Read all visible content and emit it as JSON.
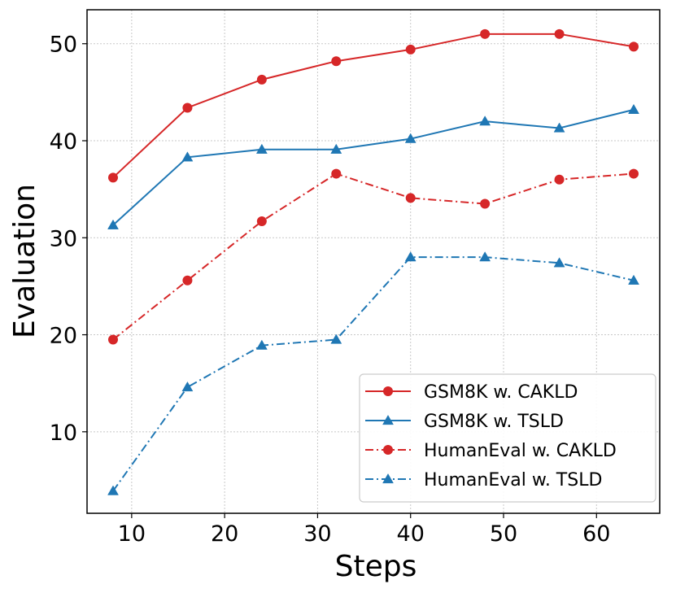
{
  "chart_data": {
    "type": "line",
    "title": "",
    "xlabel": "Steps",
    "ylabel": "Evaluation",
    "xlim": [
      5.2,
      66.8
    ],
    "ylim": [
      1.6,
      53.5
    ],
    "xticks": [
      10,
      20,
      30,
      40,
      50,
      60
    ],
    "yticks": [
      10,
      20,
      30,
      40,
      50
    ],
    "grid": true,
    "legend_position": "bottom-right",
    "x": [
      8,
      16,
      24,
      32,
      40,
      48,
      56,
      64
    ],
    "series": [
      {
        "name": "GSM8K w. CAKLD",
        "color": "#d62728",
        "marker": "circle",
        "linestyle": "solid",
        "values": [
          36.2,
          43.4,
          46.3,
          48.2,
          49.4,
          51.0,
          51.0,
          49.7
        ]
      },
      {
        "name": "GSM8K w. TSLD",
        "color": "#1f77b4",
        "marker": "triangle",
        "linestyle": "solid",
        "values": [
          31.3,
          38.3,
          39.1,
          39.1,
          40.2,
          42.0,
          41.3,
          43.2
        ]
      },
      {
        "name": "HumanEval w. CAKLD",
        "color": "#d62728",
        "marker": "circle",
        "linestyle": "dashdot",
        "values": [
          19.5,
          25.6,
          31.7,
          36.6,
          34.1,
          33.5,
          36.0,
          36.6
        ]
      },
      {
        "name": "HumanEval w. TSLD",
        "color": "#1f77b4",
        "marker": "triangle",
        "linestyle": "dashdot",
        "values": [
          3.9,
          14.6,
          18.9,
          19.5,
          28.0,
          28.0,
          27.4,
          25.6
        ]
      }
    ]
  }
}
